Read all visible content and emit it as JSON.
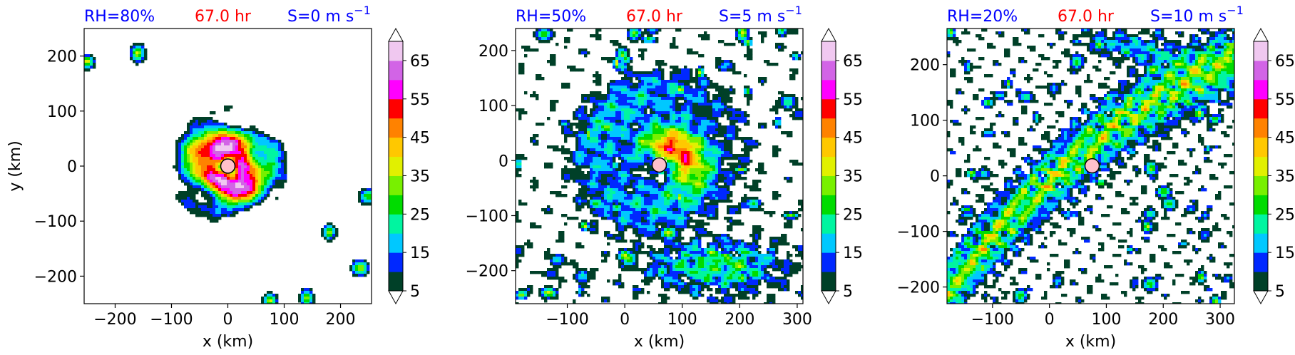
{
  "chart_data": [
    {
      "type": "heatmap",
      "title": {
        "left": "RH=80%",
        "center": "67.0 hr",
        "right": "S=0 m s",
        "right_sup": "−1"
      },
      "xlabel": "x (km)",
      "ylabel": "y (km)",
      "xlim": [
        -255,
        255
      ],
      "ylim": [
        -250,
        250
      ],
      "xticks": [
        -200,
        -100,
        0,
        100,
        200
      ],
      "yticks": [
        -200,
        -100,
        0,
        100,
        200
      ],
      "center_marker": [
        0,
        0
      ],
      "colorbar_ticks": [
        "5",
        "15",
        "25",
        "35",
        "45",
        "55",
        "65"
      ]
    },
    {
      "type": "heatmap",
      "title": {
        "left": "RH=50%",
        "center": "67.0 hr",
        "right": "S=5 m s",
        "right_sup": "−1"
      },
      "xlabel": "x (km)",
      "ylabel": "",
      "xlim": [
        -190,
        310
      ],
      "ylim": [
        -260,
        240
      ],
      "xticks": [
        -100,
        0,
        100,
        200,
        300
      ],
      "yticks": [
        -200,
        -100,
        0,
        100,
        200
      ],
      "center_marker": [
        60,
        -8
      ],
      "colorbar_ticks": [
        "5",
        "15",
        "25",
        "35",
        "45",
        "55",
        "65"
      ]
    },
    {
      "type": "heatmap",
      "title": {
        "left": "RH=20%",
        "center": "67.0 hr",
        "right": "S=10 m s",
        "right_sup": "−1"
      },
      "xlabel": "x (km)",
      "ylabel": "",
      "xlim": [
        -180,
        325
      ],
      "ylim": [
        -230,
        265
      ],
      "xticks": [
        -100,
        0,
        100,
        200,
        300
      ],
      "yticks": [
        -200,
        -100,
        0,
        100,
        200
      ],
      "center_marker": [
        75,
        18
      ],
      "colorbar_ticks": [
        "5",
        "15",
        "25",
        "35",
        "45",
        "55",
        "65"
      ]
    }
  ],
  "colorbar": {
    "levels": [
      5,
      10,
      15,
      20,
      25,
      30,
      35,
      40,
      45,
      50,
      55,
      60,
      65,
      70
    ],
    "colors": [
      "#004028",
      "#0028ff",
      "#00c8ff",
      "#00f5a0",
      "#00dc00",
      "#78f000",
      "#e1f000",
      "#ffc800",
      "#ff8200",
      "#ff0000",
      "#ff00ff",
      "#d264e6",
      "#f0c8f0"
    ],
    "extend": "both"
  }
}
